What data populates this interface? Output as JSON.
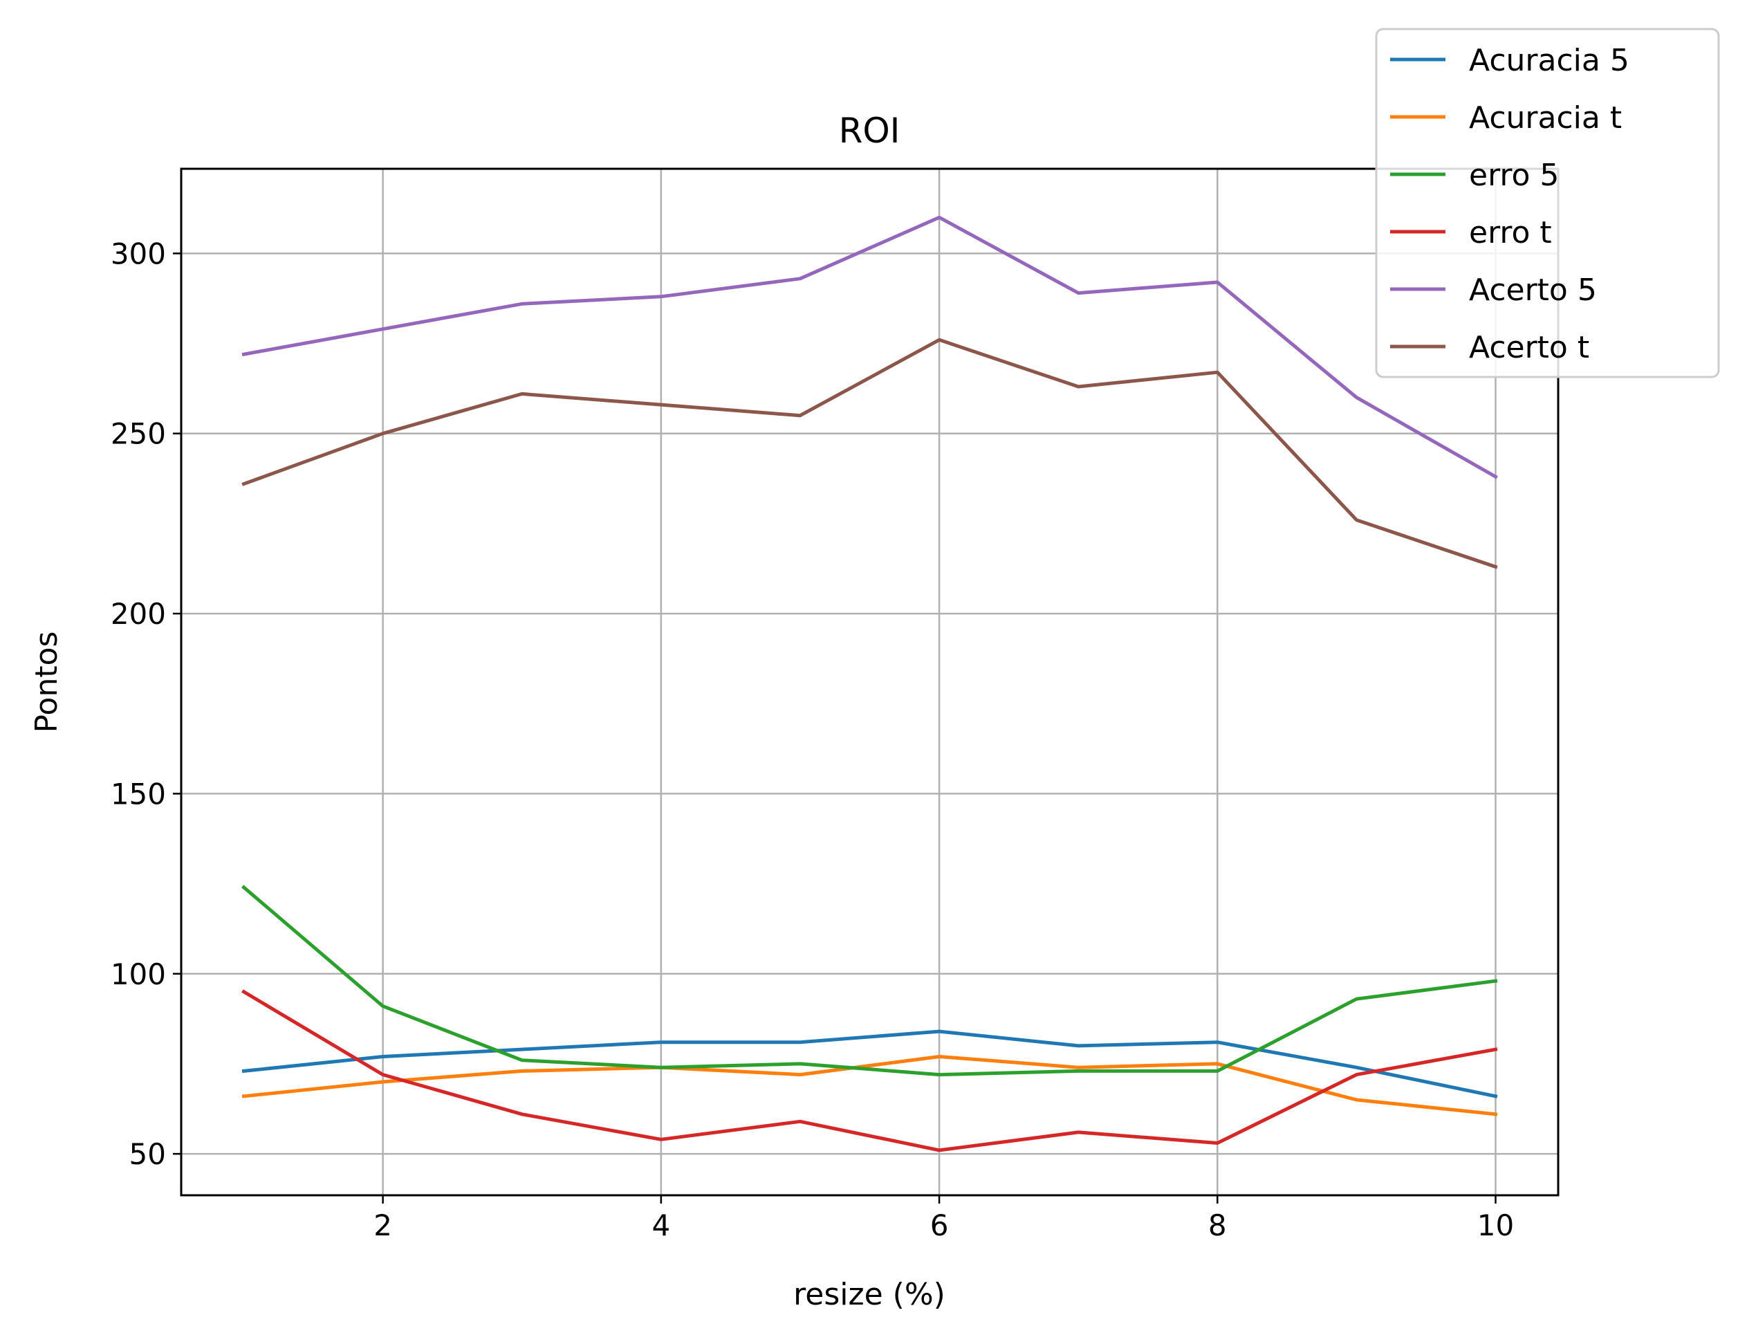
{
  "chart_data": {
    "type": "line",
    "title": "ROI",
    "xlabel": "resize (%)",
    "ylabel": "Pontos",
    "x": [
      1,
      2,
      3,
      4,
      5,
      6,
      7,
      8,
      9,
      10
    ],
    "xlim": [
      0.55,
      10.45
    ],
    "ylim": [
      38.5,
      323.5
    ],
    "xticks": [
      2,
      4,
      6,
      8,
      10
    ],
    "yticks": [
      50,
      100,
      150,
      200,
      250,
      300
    ],
    "grid": true,
    "legend_position": "top-right (outside axes)",
    "series": [
      {
        "name": "Acuracia 5",
        "color": "#1f77b4",
        "values": [
          73,
          77,
          79,
          81,
          81,
          84,
          80,
          81,
          74,
          66
        ]
      },
      {
        "name": "Acuracia t",
        "color": "#ff7f0e",
        "values": [
          66,
          70,
          73,
          74,
          72,
          77,
          74,
          75,
          65,
          61
        ]
      },
      {
        "name": "erro 5",
        "color": "#2ca02c",
        "values": [
          124,
          91,
          76,
          74,
          75,
          72,
          73,
          73,
          93,
          98
        ]
      },
      {
        "name": "erro t",
        "color": "#d62728",
        "values": [
          95,
          72,
          61,
          54,
          59,
          51,
          56,
          53,
          72,
          79
        ]
      },
      {
        "name": "Acerto 5",
        "color": "#9467bd",
        "values": [
          272,
          279,
          286,
          288,
          293,
          310,
          289,
          292,
          260,
          238
        ]
      },
      {
        "name": "Acerto t",
        "color": "#8c564b",
        "values": [
          236,
          250,
          261,
          258,
          255,
          276,
          263,
          267,
          226,
          213
        ]
      }
    ]
  }
}
